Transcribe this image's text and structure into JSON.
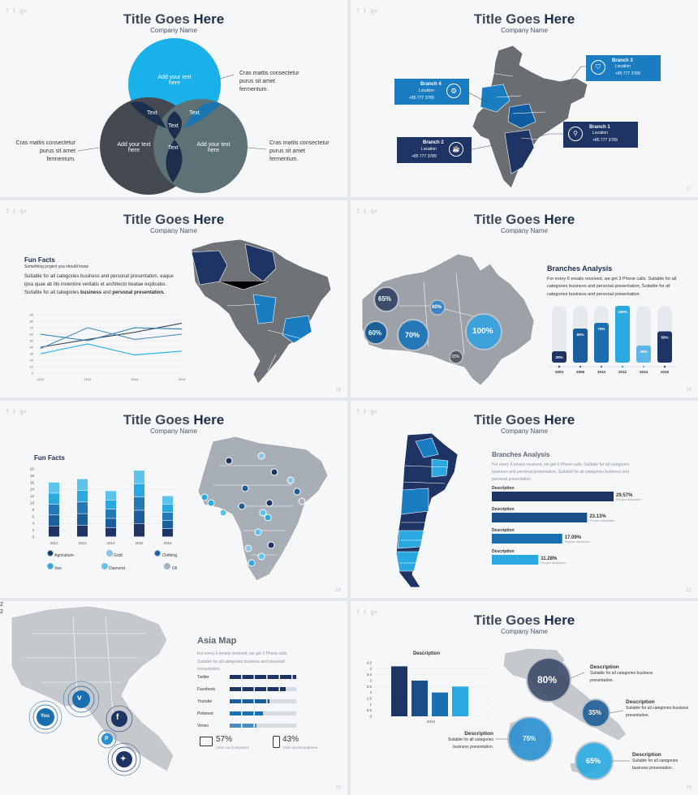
{
  "slide_common": {
    "title_plain": "Title Goes ",
    "title_bold": "Here",
    "company": "Company Name"
  },
  "social_icons": [
    "f",
    "t",
    "g+"
  ],
  "slide1": {
    "venn_top": "Add your text here",
    "venn_left": "Add your text here",
    "venn_right": "Add your text here",
    "overlap_left": "Text",
    "overlap_right": "Text",
    "overlap_center": "Text",
    "overlap_bottom": "Text",
    "note_right_top": "Cras mattis consectetur purus sit amet fermentum.",
    "note_left": "Cras mattis consectetur purus sit amet fermentum.",
    "note_right": "Cras mattis consectetur purus sit amet fermentum.",
    "colors": {
      "cyan": "#1ab0ea",
      "dark": "#454a52",
      "gray": "#5d7176"
    }
  },
  "slide2": {
    "page": "17",
    "branches": [
      {
        "name": "Branch 4",
        "loc": "Location",
        "phone": "+85 777 3789"
      },
      {
        "name": "Branch 3",
        "loc": "Location",
        "phone": "+85 777 3789"
      },
      {
        "name": "Branch 2",
        "loc": "Location",
        "phone": "+85 777 3789"
      },
      {
        "name": "Branch 1",
        "loc": "Location",
        "phone": "+85 777 3789"
      }
    ]
  },
  "slide3": {
    "page": "18",
    "heading": "Fun Facts",
    "subheading": "Something project  you should know",
    "body": "Suitable for all categories business and personal presentation, eaque ipsa quae ab illo inventore veritatis et architecto beatae explicabo. Suitable for all categories ",
    "body_b1": "business",
    "body_mid": " and ",
    "body_b2": "personal presentation.",
    "chart_data": {
      "type": "line",
      "x": [
        "2012",
        "2013",
        "2014",
        "2015"
      ],
      "ylim": [
        0,
        90
      ],
      "yticks": [
        "90",
        "80",
        "70",
        "60",
        "50",
        "40",
        "30",
        "20",
        "10",
        "0"
      ],
      "series": [
        {
          "color": "#3b4452",
          "values": [
            40,
            52,
            63,
            77
          ]
        },
        {
          "color": "#2a7aa8",
          "values": [
            60,
            50,
            70,
            68
          ]
        },
        {
          "color": "#1ab0ea",
          "values": [
            30,
            45,
            28,
            34
          ]
        },
        {
          "color": "#4a8fb5",
          "values": [
            38,
            70,
            52,
            60
          ]
        }
      ]
    }
  },
  "slide4": {
    "page": "19",
    "heading": "Branches Analysis",
    "body": "For every 6 emails received, we get 3 Phone calls. Suitable for all categories business and personal presentation, Suitable for all categories business and personal presentation",
    "bubbles": [
      "65%",
      "80%",
      "60%",
      "70%",
      "100%",
      "20%"
    ],
    "chart_data": {
      "type": "bar",
      "categories": [
        "2002",
        "2008",
        "2010",
        "2012",
        "2014",
        "2015"
      ],
      "values": [
        20,
        60,
        70,
        100,
        30,
        55
      ],
      "value_labels": [
        "20%",
        "60%",
        "70%",
        "100%",
        "30%",
        "55%"
      ],
      "ylim": [
        0,
        100
      ]
    }
  },
  "slide5": {
    "page": "20",
    "heading": "Fun Facts",
    "chart_data": {
      "type": "bar",
      "categories": [
        "2012",
        "2013",
        "2014",
        "2015",
        "2016"
      ],
      "ylim": [
        0,
        20
      ],
      "yticks": [
        "20",
        "18",
        "16",
        "14",
        "12",
        "10",
        "8",
        "6",
        "4",
        "2",
        "0"
      ],
      "totals": [
        16,
        17,
        13.5,
        19.5,
        12
      ]
    },
    "legend": [
      "Agriculture",
      "Gold",
      "Clothing",
      "Iron",
      "Diamond",
      "Oil"
    ]
  },
  "slide6": {
    "page": "21",
    "heading": "Branches Analysis",
    "body": "For every 6 emails received, we get 3 Phone calls. Suitable for all categories business and personal presentation, Suitable for all categories business and personal presentation",
    "chart_data": {
      "type": "bar",
      "orientation": "horizontal",
      "categories": [
        "Description",
        "Description",
        "Description",
        "Description"
      ],
      "values": [
        29.57,
        23.13,
        17.09,
        11.28
      ],
      "value_labels": [
        "29.57%",
        "23.13%",
        "17.09%",
        "11.28%"
      ],
      "sub": "Put your description"
    }
  },
  "slide7": {
    "page": "22",
    "corner": "2\n2",
    "heading": "Asia Map",
    "body": "For every 6 emails received, we get 3 Phone calls. Suitable for all categories business and personal presentation.",
    "bars": [
      {
        "label": "Twitter",
        "fill": 1.0
      },
      {
        "label": "Facebook",
        "fill": 0.84
      },
      {
        "label": "Youtube",
        "fill": 0.6
      },
      {
        "label": "Pinterest",
        "fill": 0.5
      },
      {
        "label": "Vimeo",
        "fill": 0.4
      }
    ],
    "stat1_value": "57%",
    "stat1_label": "Visits via Computers",
    "stat2_value": "43%",
    "stat2_label": "Visits via Smartphone"
  },
  "slide8": {
    "page": "23",
    "chart_title": "Description",
    "chart_data": {
      "type": "bar",
      "categories": [
        "2015"
      ],
      "series": [
        {
          "values": [
            4.2
          ]
        },
        {
          "values": [
            3.0
          ]
        },
        {
          "values": [
            2.0
          ]
        },
        {
          "values": [
            2.5
          ]
        }
      ],
      "ylim": [
        0,
        4.5
      ],
      "yticks": [
        "4.5",
        "4",
        "3.5",
        "3",
        "2.5",
        "2",
        "1.5",
        "1",
        "0.5",
        "0"
      ]
    },
    "bubbles": [
      "80%",
      "35%",
      "75%",
      "65%"
    ],
    "desc_title": "Description",
    "desc_body": "Suitable for all categories business presentation."
  }
}
